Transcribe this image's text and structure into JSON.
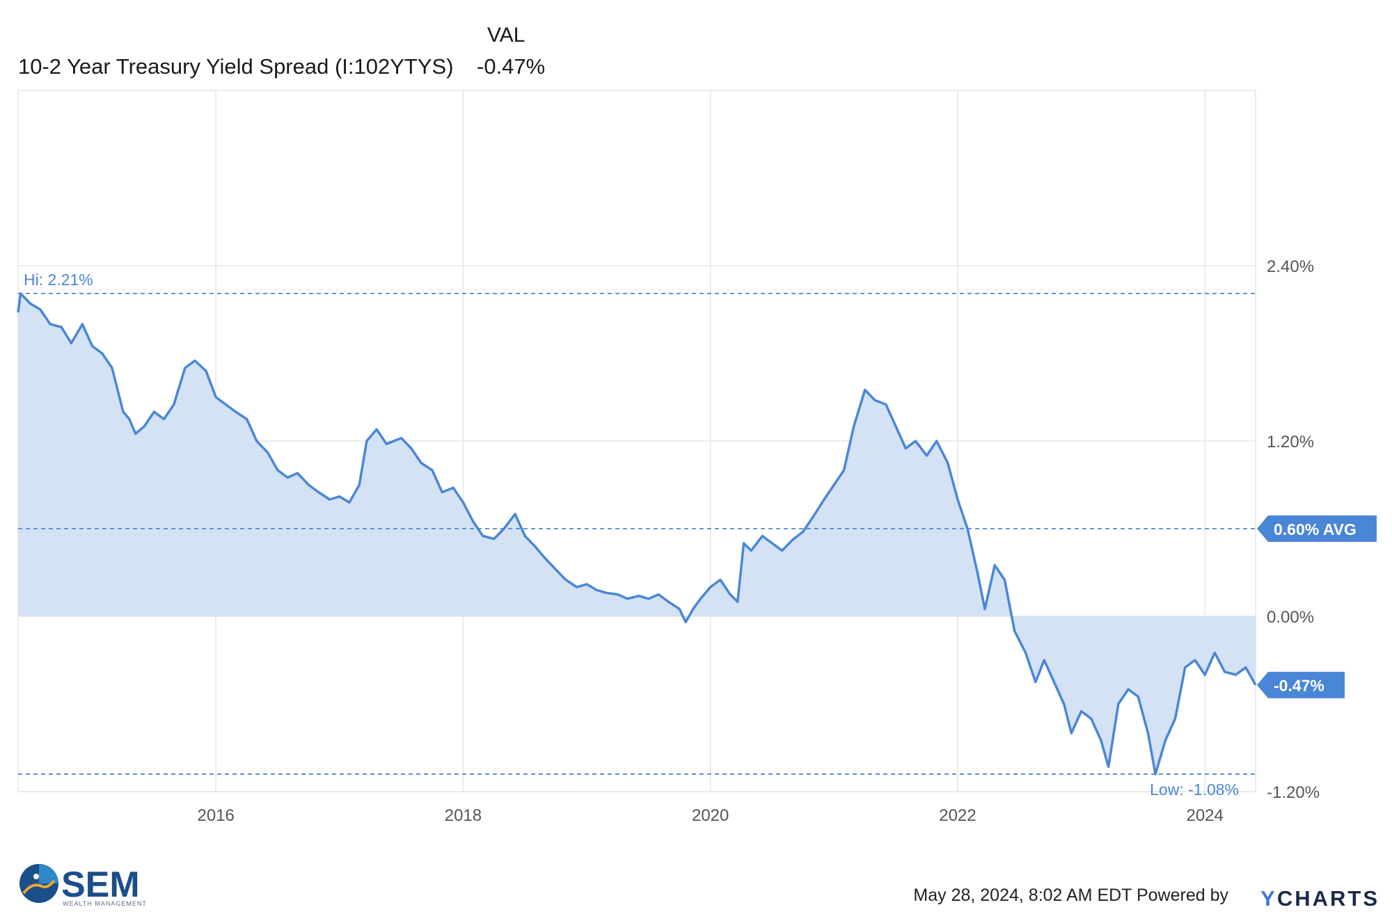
{
  "legend": {
    "column_header": "VAL",
    "series_name": "10-2 Year Treasury Yield Spread (I:102YTYS)",
    "series_value": "-0.47%"
  },
  "footer": {
    "timestamp": "May 28, 2024, 8:02 AM EDT",
    "powered_by": "Powered by",
    "brand": "CHARTS",
    "brand_y": "Y"
  },
  "logo": {
    "name": "SEM",
    "tagline": "WEALTH MANAGEMENT"
  },
  "colors": {
    "line": "#4a86d6",
    "fill": "#d3e2f5",
    "grid": "#e6e6e6",
    "dashed": "#4a86d6",
    "badge": "#4a86d6",
    "axis_text": "#555555"
  },
  "chart_data": {
    "type": "area",
    "title": "",
    "xlabel": "",
    "ylabel": "",
    "x_ticks": [
      "2016",
      "2018",
      "2020",
      "2022",
      "2024"
    ],
    "x_tick_values": [
      2016,
      2018,
      2020,
      2022,
      2024
    ],
    "xlim": [
      2014.4,
      2024.41
    ],
    "y_ticks": [
      "2.40%",
      "1.20%",
      "0.00%",
      "-1.20%"
    ],
    "y_tick_values": [
      2.4,
      1.2,
      0.0,
      -1.2
    ],
    "ylim": [
      -1.2,
      3.6
    ],
    "grid": true,
    "reference_lines": [
      {
        "label": "Hi: 2.21%",
        "value": 2.21
      },
      {
        "label": "0.60% AVG",
        "value": 0.6
      },
      {
        "label": "Low: -1.08%",
        "value": -1.08
      }
    ],
    "last_value_badge": {
      "label": "-0.47%",
      "value": -0.47
    },
    "series": [
      {
        "name": "10-2 Year Treasury Yield Spread (I:102YTYS)",
        "points": [
          [
            2014.4,
            2.08
          ],
          [
            2014.42,
            2.21
          ],
          [
            2014.5,
            2.14
          ],
          [
            2014.58,
            2.1
          ],
          [
            2014.66,
            2.0
          ],
          [
            2014.75,
            1.98
          ],
          [
            2014.83,
            1.87
          ],
          [
            2014.92,
            2.0
          ],
          [
            2015.0,
            1.85
          ],
          [
            2015.08,
            1.8
          ],
          [
            2015.16,
            1.7
          ],
          [
            2015.25,
            1.4
          ],
          [
            2015.3,
            1.35
          ],
          [
            2015.35,
            1.25
          ],
          [
            2015.42,
            1.3
          ],
          [
            2015.5,
            1.4
          ],
          [
            2015.58,
            1.35
          ],
          [
            2015.66,
            1.45
          ],
          [
            2015.75,
            1.7
          ],
          [
            2015.83,
            1.75
          ],
          [
            2015.92,
            1.68
          ],
          [
            2016.0,
            1.5
          ],
          [
            2016.08,
            1.45
          ],
          [
            2016.16,
            1.4
          ],
          [
            2016.25,
            1.35
          ],
          [
            2016.33,
            1.2
          ],
          [
            2016.42,
            1.12
          ],
          [
            2016.5,
            1.0
          ],
          [
            2016.58,
            0.95
          ],
          [
            2016.66,
            0.98
          ],
          [
            2016.75,
            0.9
          ],
          [
            2016.83,
            0.85
          ],
          [
            2016.92,
            0.8
          ],
          [
            2017.0,
            0.82
          ],
          [
            2017.08,
            0.78
          ],
          [
            2017.16,
            0.9
          ],
          [
            2017.22,
            1.2
          ],
          [
            2017.3,
            1.28
          ],
          [
            2017.38,
            1.18
          ],
          [
            2017.5,
            1.22
          ],
          [
            2017.58,
            1.15
          ],
          [
            2017.66,
            1.05
          ],
          [
            2017.75,
            1.0
          ],
          [
            2017.83,
            0.85
          ],
          [
            2017.92,
            0.88
          ],
          [
            2018.0,
            0.78
          ],
          [
            2018.08,
            0.65
          ],
          [
            2018.16,
            0.55
          ],
          [
            2018.25,
            0.53
          ],
          [
            2018.33,
            0.6
          ],
          [
            2018.42,
            0.7
          ],
          [
            2018.5,
            0.55
          ],
          [
            2018.58,
            0.48
          ],
          [
            2018.66,
            0.4
          ],
          [
            2018.75,
            0.32
          ],
          [
            2018.83,
            0.25
          ],
          [
            2018.92,
            0.2
          ],
          [
            2019.0,
            0.22
          ],
          [
            2019.08,
            0.18
          ],
          [
            2019.16,
            0.16
          ],
          [
            2019.25,
            0.15
          ],
          [
            2019.33,
            0.12
          ],
          [
            2019.42,
            0.14
          ],
          [
            2019.5,
            0.12
          ],
          [
            2019.58,
            0.15
          ],
          [
            2019.66,
            0.1
          ],
          [
            2019.75,
            0.05
          ],
          [
            2019.8,
            -0.04
          ],
          [
            2019.86,
            0.05
          ],
          [
            2019.92,
            0.12
          ],
          [
            2020.0,
            0.2
          ],
          [
            2020.08,
            0.25
          ],
          [
            2020.16,
            0.15
          ],
          [
            2020.22,
            0.1
          ],
          [
            2020.27,
            0.5
          ],
          [
            2020.33,
            0.45
          ],
          [
            2020.42,
            0.55
          ],
          [
            2020.5,
            0.5
          ],
          [
            2020.58,
            0.45
          ],
          [
            2020.66,
            0.52
          ],
          [
            2020.75,
            0.58
          ],
          [
            2020.83,
            0.68
          ],
          [
            2020.92,
            0.8
          ],
          [
            2021.0,
            0.9
          ],
          [
            2021.08,
            1.0
          ],
          [
            2021.16,
            1.3
          ],
          [
            2021.25,
            1.55
          ],
          [
            2021.33,
            1.48
          ],
          [
            2021.42,
            1.45
          ],
          [
            2021.5,
            1.3
          ],
          [
            2021.58,
            1.15
          ],
          [
            2021.66,
            1.2
          ],
          [
            2021.75,
            1.1
          ],
          [
            2021.83,
            1.2
          ],
          [
            2021.92,
            1.05
          ],
          [
            2022.0,
            0.8
          ],
          [
            2022.08,
            0.6
          ],
          [
            2022.16,
            0.3
          ],
          [
            2022.22,
            0.05
          ],
          [
            2022.3,
            0.35
          ],
          [
            2022.38,
            0.25
          ],
          [
            2022.46,
            -0.1
          ],
          [
            2022.55,
            -0.25
          ],
          [
            2022.63,
            -0.45
          ],
          [
            2022.7,
            -0.3
          ],
          [
            2022.78,
            -0.45
          ],
          [
            2022.86,
            -0.6
          ],
          [
            2022.92,
            -0.8
          ],
          [
            2023.0,
            -0.65
          ],
          [
            2023.08,
            -0.7
          ],
          [
            2023.16,
            -0.85
          ],
          [
            2023.22,
            -1.03
          ],
          [
            2023.3,
            -0.6
          ],
          [
            2023.38,
            -0.5
          ],
          [
            2023.46,
            -0.55
          ],
          [
            2023.54,
            -0.8
          ],
          [
            2023.6,
            -1.08
          ],
          [
            2023.68,
            -0.85
          ],
          [
            2023.76,
            -0.7
          ],
          [
            2023.84,
            -0.35
          ],
          [
            2023.92,
            -0.3
          ],
          [
            2024.0,
            -0.4
          ],
          [
            2024.08,
            -0.25
          ],
          [
            2024.16,
            -0.38
          ],
          [
            2024.25,
            -0.4
          ],
          [
            2024.33,
            -0.35
          ],
          [
            2024.41,
            -0.47
          ]
        ]
      }
    ]
  }
}
